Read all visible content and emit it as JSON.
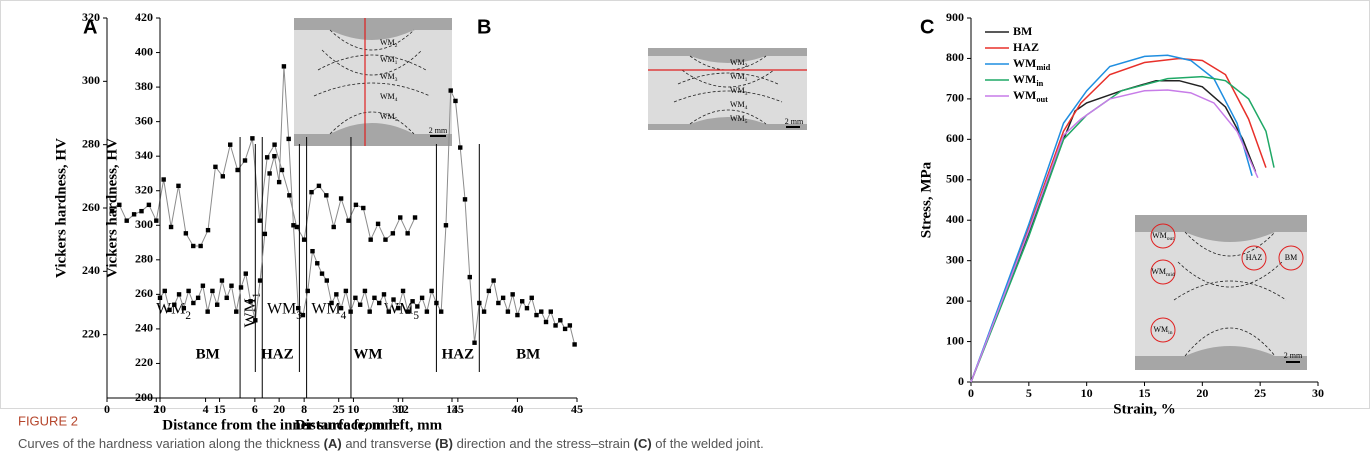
{
  "figure_label": "FIGURE 2",
  "caption": [
    "Curves of the hardness variation along the thickness ",
    "(A)",
    " and transverse ",
    "(B)",
    " direction and the stress–strain ",
    "(C)",
    " of the welded joint."
  ],
  "chart_data": [
    {
      "type": "scatter-line",
      "panel_label": "A",
      "xlabel": "Distance from the inner surface, mm",
      "ylabel": "Vickers hardness, HV",
      "xlim": [
        0,
        14
      ],
      "xticks": [
        0,
        2,
        4,
        6,
        8,
        10,
        12,
        14
      ],
      "ylim": [
        200,
        320
      ],
      "yticks": [
        220,
        240,
        260,
        280,
        300,
        320
      ],
      "color": "#000000",
      "line_color": "#8c8c8c",
      "x": [
        0.2,
        0.5,
        0.8,
        1.1,
        1.4,
        1.7,
        2.0,
        2.3,
        2.6,
        2.9,
        3.2,
        3.5,
        3.8,
        4.1,
        4.4,
        4.7,
        5.0,
        5.3,
        5.6,
        5.9,
        6.2,
        6.5,
        6.8,
        7.1,
        7.4,
        7.7,
        8.0,
        8.3,
        8.6,
        8.9,
        9.2,
        9.5,
        9.8,
        10.1,
        10.4,
        10.7,
        11.0,
        11.3,
        11.6,
        11.9,
        12.2,
        12.5
      ],
      "values": [
        259,
        261,
        256,
        258,
        259,
        261,
        256,
        269,
        254,
        267,
        252,
        248,
        248,
        253,
        273,
        270,
        280,
        272,
        275,
        282,
        256,
        276,
        280,
        272,
        264,
        254,
        250,
        265,
        267,
        264,
        254,
        263,
        256,
        261,
        260,
        250,
        255,
        250,
        252,
        257,
        252,
        257
      ],
      "zone_lines": [
        5.4,
        6.3,
        8.1,
        9.9
      ],
      "zones": [
        "WM2",
        "WM1",
        "WM3",
        "WM4",
        "WM5"
      ],
      "inset_labels": [
        "WM2",
        "WM1",
        "WM3",
        "WM4",
        "WM5",
        "2 mm"
      ]
    },
    {
      "type": "scatter-line",
      "panel_label": "B",
      "xlabel": "Distance from left, mm",
      "ylabel": "Vickers hardness, HV",
      "xlim": [
        10,
        45
      ],
      "xticks": [
        10,
        15,
        20,
        25,
        30,
        35,
        40,
        45
      ],
      "ylim": [
        200,
        420
      ],
      "yticks": [
        200,
        220,
        240,
        260,
        280,
        300,
        320,
        340,
        360,
        380,
        400,
        420
      ],
      "color": "#000000",
      "line_color": "#8c8c8c",
      "x": [
        10.0,
        10.4,
        10.8,
        11.2,
        11.6,
        12.0,
        12.4,
        12.8,
        13.2,
        13.6,
        14.0,
        14.4,
        14.8,
        15.2,
        15.6,
        16.0,
        16.4,
        16.8,
        17.2,
        17.6,
        18.0,
        18.4,
        18.8,
        19.2,
        19.6,
        20.0,
        20.4,
        20.8,
        21.2,
        21.6,
        22.0,
        22.4,
        22.8,
        23.2,
        23.6,
        24.0,
        24.4,
        24.8,
        25.2,
        25.6,
        26.0,
        26.4,
        26.8,
        27.2,
        27.6,
        28.0,
        28.4,
        28.8,
        29.2,
        29.6,
        30.0,
        30.4,
        30.8,
        31.2,
        31.6,
        32.0,
        32.4,
        32.8,
        33.2,
        33.6,
        34.0,
        34.4,
        34.8,
        35.2,
        35.6,
        36.0,
        36.4,
        36.8,
        37.2,
        37.6,
        38.0,
        38.4,
        38.8,
        39.2,
        39.6,
        40.0,
        40.4,
        40.8,
        41.2,
        41.6,
        42.0,
        42.4,
        42.8,
        43.2,
        43.6,
        44.0,
        44.4,
        44.8
      ],
      "values": [
        258,
        262,
        251,
        254,
        260,
        252,
        262,
        255,
        258,
        265,
        250,
        262,
        254,
        268,
        258,
        265,
        250,
        264,
        272,
        256,
        245,
        268,
        295,
        330,
        340,
        325,
        392,
        350,
        300,
        252,
        248,
        262,
        285,
        278,
        272,
        268,
        255,
        260,
        252,
        262,
        250,
        258,
        254,
        262,
        250,
        258,
        255,
        260,
        250,
        257,
        252,
        262,
        250,
        256,
        253,
        258,
        250,
        262,
        255,
        250,
        300,
        378,
        372,
        345,
        315,
        270,
        232,
        255,
        250,
        262,
        268,
        255,
        258,
        250,
        260,
        248,
        256,
        252,
        258,
        248,
        250,
        244,
        250,
        242,
        245,
        240,
        242,
        231
      ],
      "zone_lines": [
        18.0,
        21.7,
        33.2,
        36.8
      ],
      "zones": [
        "BM",
        "HAZ",
        "WM",
        "HAZ",
        "BM"
      ],
      "inset_labels": [
        "WM2",
        "WM1",
        "WM3",
        "WM4",
        "WM5",
        "2 mm"
      ]
    },
    {
      "type": "line",
      "panel_label": "C",
      "xlabel": "Strain, %",
      "ylabel": "Stress, MPa",
      "xlim": [
        0,
        30
      ],
      "xticks": [
        0,
        5,
        10,
        15,
        20,
        25,
        30
      ],
      "ylim": [
        0,
        900
      ],
      "yticks": [
        0,
        100,
        200,
        300,
        400,
        500,
        600,
        700,
        800,
        900
      ],
      "legend": "upper left",
      "series": [
        {
          "name": "BM",
          "color": "#222222",
          "x": [
            0,
            5,
            8,
            9,
            10,
            13,
            16,
            18,
            20,
            22,
            23.5,
            24.6
          ],
          "values": [
            0,
            370,
            600,
            670,
            690,
            720,
            745,
            745,
            730,
            680,
            600,
            520
          ]
        },
        {
          "name": "HAZ",
          "color": "#e8302a",
          "x": [
            0,
            5,
            8,
            9.5,
            12,
            15,
            18,
            20,
            22,
            24,
            25.5
          ],
          "values": [
            0,
            380,
            620,
            690,
            760,
            790,
            800,
            795,
            760,
            650,
            530
          ]
        },
        {
          "name": "WMmid",
          "color": "#1f8ee0",
          "x": [
            0,
            5,
            8,
            10,
            12,
            15,
            17,
            19,
            21,
            23,
            24.3
          ],
          "values": [
            0,
            390,
            640,
            720,
            780,
            805,
            808,
            795,
            750,
            640,
            510
          ]
        },
        {
          "name": "WMin",
          "color": "#1fa866",
          "x": [
            0,
            5,
            8,
            10,
            13,
            17,
            20,
            22,
            24,
            25.5,
            26.2
          ],
          "values": [
            0,
            360,
            600,
            660,
            720,
            750,
            755,
            745,
            700,
            620,
            530
          ]
        },
        {
          "name": "WMout",
          "color": "#c77ce8",
          "x": [
            0,
            5,
            8,
            9.5,
            12,
            15,
            17,
            19,
            21,
            23,
            24.8
          ],
          "values": [
            0,
            375,
            610,
            650,
            700,
            720,
            722,
            715,
            690,
            620,
            505
          ]
        }
      ],
      "inset_labels": [
        "WMout",
        "HAZ",
        "BM",
        "WMmid",
        "WMin",
        "2 mm"
      ]
    }
  ]
}
